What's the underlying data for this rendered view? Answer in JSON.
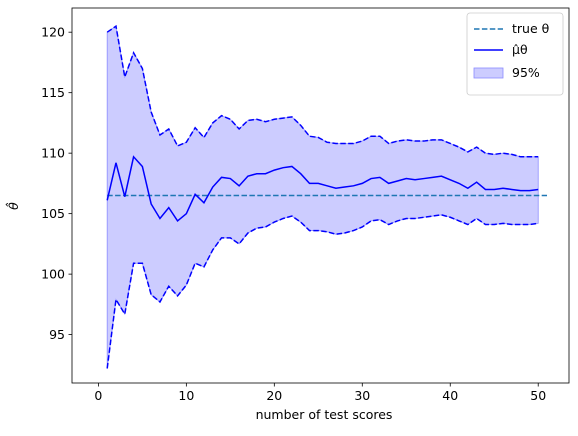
{
  "chart_data": {
    "type": "line",
    "title": "",
    "xlabel": "number of test scores",
    "ylabel": "θ̂",
    "xlim": [
      -3,
      53.5
    ],
    "ylim": [
      91,
      122
    ],
    "x_ticks": [
      0,
      10,
      20,
      30,
      40,
      50
    ],
    "y_ticks": [
      95,
      100,
      105,
      110,
      115,
      120
    ],
    "legend_position": "top-right",
    "grid": false,
    "true_theta": 106.5,
    "true_theta_x_range": [
      1,
      51
    ],
    "x": [
      1,
      2,
      3,
      4,
      5,
      6,
      7,
      8,
      9,
      10,
      11,
      12,
      13,
      14,
      15,
      16,
      17,
      18,
      19,
      20,
      21,
      22,
      23,
      24,
      25,
      26,
      27,
      28,
      29,
      30,
      31,
      32,
      33,
      34,
      35,
      36,
      37,
      38,
      39,
      40,
      41,
      42,
      43,
      44,
      45,
      46,
      47,
      48,
      49,
      50
    ],
    "series": [
      {
        "name": "true θ",
        "style": "dashed",
        "color": "#1f77b4"
      },
      {
        "name": "μ̂θ",
        "style": "solid",
        "color": "#0000ff",
        "values": [
          106.1,
          109.2,
          106.4,
          109.7,
          108.9,
          105.8,
          104.6,
          105.5,
          104.4,
          105.0,
          106.6,
          105.9,
          107.2,
          108.0,
          107.9,
          107.3,
          108.1,
          108.3,
          108.3,
          108.6,
          108.8,
          108.9,
          108.3,
          107.5,
          107.5,
          107.3,
          107.1,
          107.2,
          107.3,
          107.5,
          107.9,
          108.0,
          107.5,
          107.7,
          107.9,
          107.8,
          107.9,
          108.0,
          108.1,
          107.8,
          107.5,
          107.1,
          107.6,
          107.0,
          107.0,
          107.1,
          107.0,
          106.9,
          106.9,
          107.0
        ]
      },
      {
        "name": "95% upper",
        "style": "dashed",
        "color": "#0000ff",
        "values": [
          120.0,
          120.5,
          116.3,
          118.3,
          117.0,
          113.4,
          111.5,
          112.0,
          110.6,
          110.9,
          112.1,
          111.3,
          112.5,
          113.1,
          112.8,
          112.0,
          112.7,
          112.8,
          112.6,
          112.8,
          112.9,
          113.0,
          112.3,
          111.4,
          111.3,
          110.9,
          110.8,
          110.8,
          110.8,
          111.0,
          111.4,
          111.4,
          110.8,
          111.0,
          111.1,
          111.0,
          111.0,
          111.1,
          111.1,
          110.8,
          110.5,
          110.1,
          110.5,
          110.0,
          109.9,
          110.0,
          109.9,
          109.7,
          109.7,
          109.7
        ]
      },
      {
        "name": "95% lower",
        "style": "dashed",
        "color": "#0000ff",
        "values": [
          92.2,
          97.9,
          96.7,
          100.9,
          100.9,
          98.3,
          97.7,
          99.0,
          98.2,
          99.1,
          100.9,
          100.6,
          102.0,
          103.0,
          103.0,
          102.5,
          103.4,
          103.8,
          103.9,
          104.3,
          104.6,
          104.8,
          104.3,
          103.6,
          103.6,
          103.5,
          103.3,
          103.4,
          103.6,
          103.9,
          104.4,
          104.5,
          104.1,
          104.4,
          104.6,
          104.6,
          104.7,
          104.8,
          104.9,
          104.7,
          104.4,
          104.1,
          104.6,
          104.1,
          104.1,
          104.2,
          104.1,
          104.1,
          104.1,
          104.2
        ]
      }
    ],
    "band": {
      "name": "95%",
      "fill": "#ccccff",
      "edge": "#8c8cff"
    },
    "legend": [
      {
        "label": "true θ"
      },
      {
        "label": "μ̂θ"
      },
      {
        "label": "95%"
      }
    ]
  }
}
